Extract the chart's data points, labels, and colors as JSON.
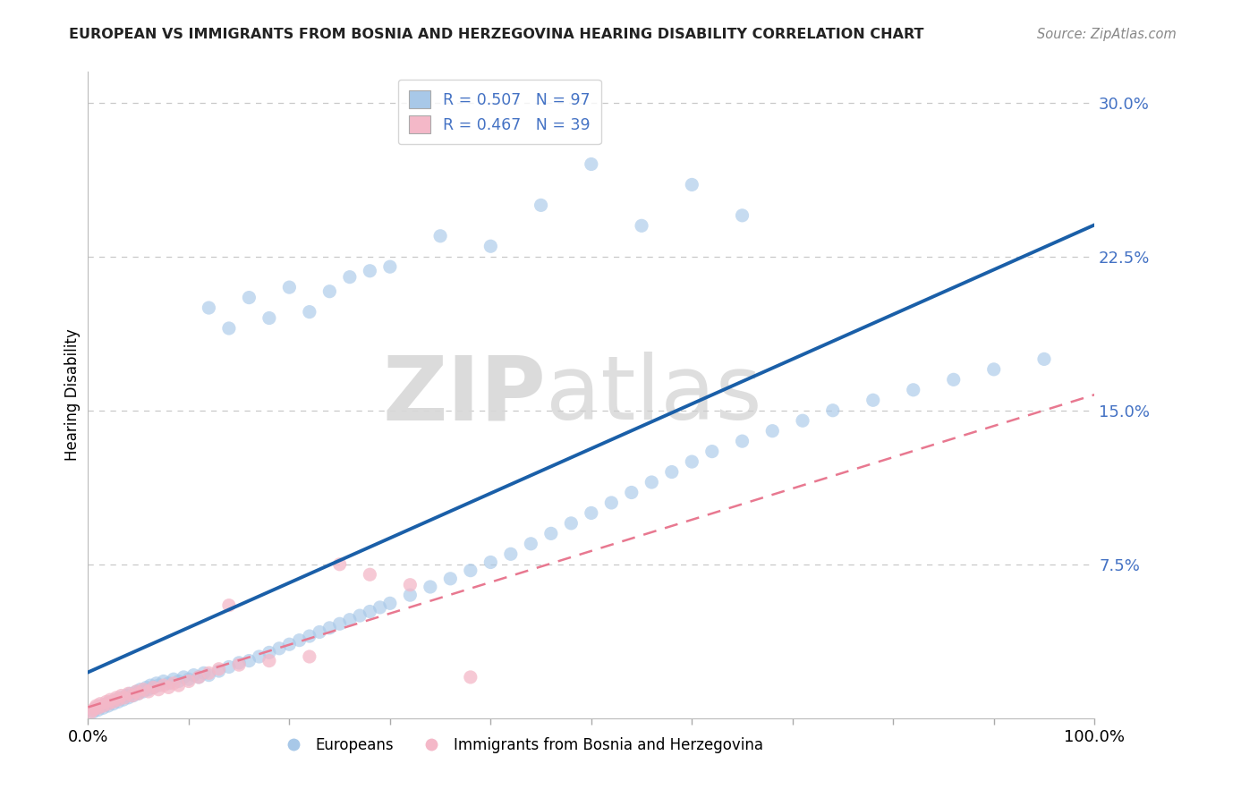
{
  "title": "EUROPEAN VS IMMIGRANTS FROM BOSNIA AND HERZEGOVINA HEARING DISABILITY CORRELATION CHART",
  "source": "Source: ZipAtlas.com",
  "ylabel": "Hearing Disability",
  "yticks": [
    0.0,
    0.075,
    0.15,
    0.225,
    0.3
  ],
  "ytick_labels": [
    "",
    "7.5%",
    "15.0%",
    "22.5%",
    "30.0%"
  ],
  "xtick_labels": [
    "0.0%",
    "",
    "",
    "",
    "",
    "",
    "",
    "",
    "",
    "",
    "100.0%"
  ],
  "xlim": [
    0.0,
    1.0
  ],
  "ylim": [
    0.0,
    0.315
  ],
  "europeans_R": 0.507,
  "europeans_N": 97,
  "bosnia_R": 0.467,
  "bosnia_N": 39,
  "blue_scatter_color": "#a8c8e8",
  "pink_scatter_color": "#f4b8c8",
  "blue_line_color": "#1a5fa8",
  "pink_line_color": "#e87890",
  "legend_blue_color": "#a8c8e8",
  "legend_pink_color": "#f4b8c8",
  "axis_tick_color": "#4472c4",
  "watermark_zip_color": "#d8d8d8",
  "watermark_atlas_color": "#d0d0d0",
  "background_color": "#ffffff",
  "grid_color": "#c8c8c8",
  "title_color": "#222222",
  "source_color": "#888888",
  "eu_x": [
    0.005,
    0.008,
    0.01,
    0.012,
    0.015,
    0.018,
    0.02,
    0.022,
    0.025,
    0.028,
    0.03,
    0.032,
    0.035,
    0.038,
    0.04,
    0.042,
    0.045,
    0.048,
    0.05,
    0.052,
    0.055,
    0.058,
    0.06,
    0.062,
    0.065,
    0.068,
    0.07,
    0.075,
    0.08,
    0.085,
    0.09,
    0.095,
    0.1,
    0.105,
    0.11,
    0.115,
    0.12,
    0.13,
    0.14,
    0.15,
    0.16,
    0.17,
    0.18,
    0.19,
    0.2,
    0.21,
    0.22,
    0.23,
    0.24,
    0.25,
    0.26,
    0.27,
    0.28,
    0.29,
    0.3,
    0.32,
    0.34,
    0.36,
    0.38,
    0.4,
    0.42,
    0.44,
    0.46,
    0.48,
    0.5,
    0.52,
    0.54,
    0.56,
    0.58,
    0.6,
    0.62,
    0.65,
    0.68,
    0.71,
    0.74,
    0.78,
    0.82,
    0.86,
    0.9,
    0.95,
    0.12,
    0.14,
    0.16,
    0.18,
    0.2,
    0.22,
    0.24,
    0.26,
    0.28,
    0.3,
    0.35,
    0.4,
    0.45,
    0.5,
    0.55,
    0.6,
    0.65
  ],
  "eu_y": [
    0.003,
    0.005,
    0.004,
    0.006,
    0.005,
    0.007,
    0.006,
    0.008,
    0.007,
    0.009,
    0.008,
    0.01,
    0.009,
    0.011,
    0.01,
    0.012,
    0.011,
    0.013,
    0.012,
    0.014,
    0.013,
    0.015,
    0.014,
    0.016,
    0.015,
    0.017,
    0.016,
    0.018,
    0.017,
    0.019,
    0.018,
    0.02,
    0.019,
    0.021,
    0.02,
    0.022,
    0.021,
    0.023,
    0.025,
    0.027,
    0.028,
    0.03,
    0.032,
    0.034,
    0.036,
    0.038,
    0.04,
    0.042,
    0.044,
    0.046,
    0.048,
    0.05,
    0.052,
    0.054,
    0.056,
    0.06,
    0.064,
    0.068,
    0.072,
    0.076,
    0.08,
    0.085,
    0.09,
    0.095,
    0.1,
    0.105,
    0.11,
    0.115,
    0.12,
    0.125,
    0.13,
    0.135,
    0.14,
    0.145,
    0.15,
    0.155,
    0.16,
    0.165,
    0.17,
    0.175,
    0.2,
    0.19,
    0.205,
    0.195,
    0.21,
    0.198,
    0.208,
    0.215,
    0.218,
    0.22,
    0.235,
    0.23,
    0.25,
    0.27,
    0.24,
    0.26,
    0.245
  ],
  "bo_x": [
    0.003,
    0.005,
    0.007,
    0.008,
    0.01,
    0.012,
    0.015,
    0.018,
    0.02,
    0.022,
    0.025,
    0.028,
    0.03,
    0.033,
    0.036,
    0.04,
    0.044,
    0.048,
    0.05,
    0.055,
    0.06,
    0.065,
    0.07,
    0.075,
    0.08,
    0.085,
    0.09,
    0.1,
    0.11,
    0.12,
    0.13,
    0.14,
    0.15,
    0.18,
    0.22,
    0.25,
    0.28,
    0.32,
    0.38
  ],
  "bo_y": [
    0.003,
    0.004,
    0.005,
    0.006,
    0.005,
    0.007,
    0.006,
    0.008,
    0.007,
    0.009,
    0.008,
    0.01,
    0.009,
    0.011,
    0.01,
    0.012,
    0.011,
    0.013,
    0.012,
    0.014,
    0.013,
    0.015,
    0.014,
    0.016,
    0.015,
    0.017,
    0.016,
    0.018,
    0.02,
    0.022,
    0.024,
    0.055,
    0.026,
    0.028,
    0.03,
    0.075,
    0.07,
    0.065,
    0.02
  ]
}
